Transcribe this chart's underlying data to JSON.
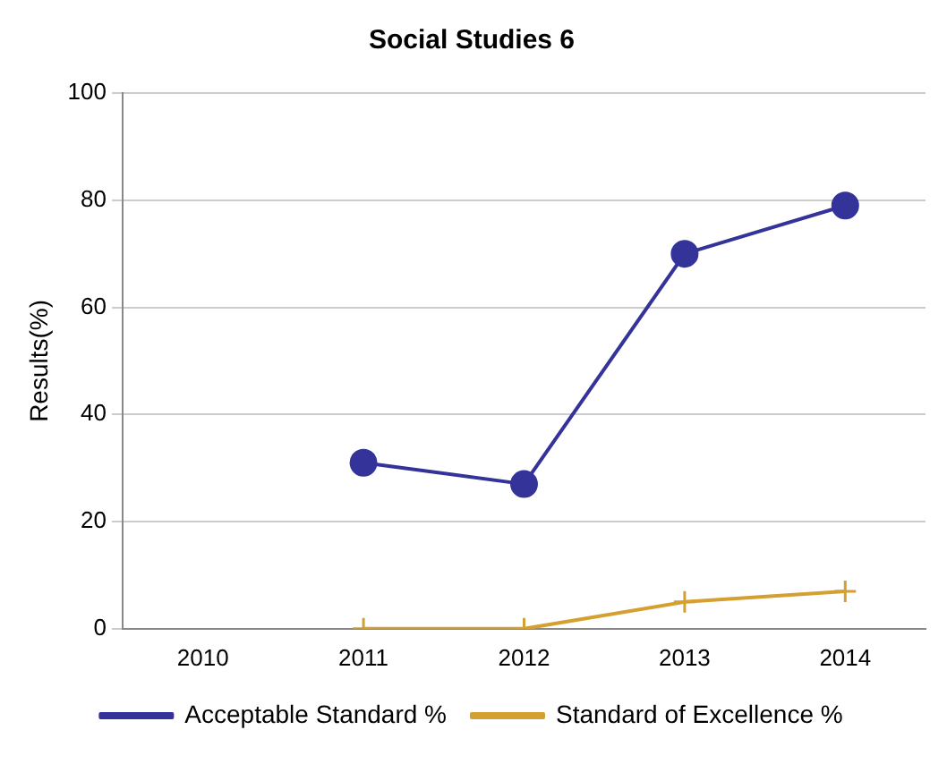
{
  "chart_data": {
    "type": "line",
    "title": "Social Studies 6",
    "ylabel": "Results(%)",
    "categories": [
      "2010",
      "2011",
      "2012",
      "2013",
      "2014"
    ],
    "series": [
      {
        "name": "Acceptable Standard %",
        "color": "#333399",
        "marker": "circle",
        "values": [
          null,
          31,
          27,
          70,
          79
        ]
      },
      {
        "name": "Standard of Excellence %",
        "color": "#d4a030",
        "marker": "cross",
        "values": [
          null,
          0,
          0,
          5,
          7
        ]
      }
    ],
    "ylim": [
      0,
      100
    ],
    "yticks": [
      0,
      20,
      40,
      60,
      80,
      100
    ],
    "grid": "y",
    "legend": "bottom",
    "line_style": "solid"
  }
}
